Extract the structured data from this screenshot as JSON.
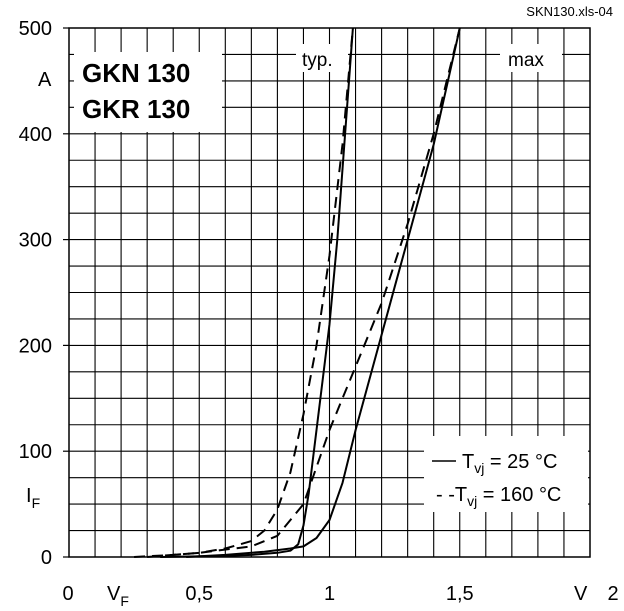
{
  "chart_data": {
    "type": "line",
    "reference": "SKN130.xls-04",
    "title_lines": [
      "GKN 130",
      "GKR 130"
    ],
    "xlabel": {
      "symbol": "V",
      "subscript": "F",
      "unit": "V"
    },
    "ylabel": {
      "symbol": "I",
      "subscript": "F",
      "unit": "A"
    },
    "xlim": [
      0,
      2
    ],
    "ylim": [
      0,
      500
    ],
    "x_tick_labels": [
      "0",
      "0,5",
      "1",
      "1,5",
      "2"
    ],
    "x_tick_values": [
      0,
      0.5,
      1,
      1.5,
      2
    ],
    "y_tick_labels": [
      "0",
      "100",
      "200",
      "300",
      "400",
      "500"
    ],
    "y_tick_values": [
      0,
      100,
      200,
      300,
      400,
      500
    ],
    "grid": true,
    "grid_x_step": 0.1,
    "grid_y_step": 25,
    "annotations": [
      "typ.",
      "max"
    ],
    "legend": {
      "placement": "bottom-right",
      "entries": [
        {
          "style": "solid",
          "prefix": "T",
          "subscript": "vj",
          "value": " =  25 °C"
        },
        {
          "style": "dashed",
          "prefix": "- -T",
          "subscript": "vj",
          "value": " = 160 °C"
        }
      ]
    },
    "series": [
      {
        "group": "typ.",
        "style": "solid",
        "points": [
          [
            0.35,
            0
          ],
          [
            0.6,
            1
          ],
          [
            0.7,
            2
          ],
          [
            0.8,
            4
          ],
          [
            0.85,
            6
          ],
          [
            0.88,
            12
          ],
          [
            0.9,
            30
          ],
          [
            0.92,
            60
          ],
          [
            0.95,
            120
          ],
          [
            0.98,
            180
          ],
          [
            1.0,
            220
          ],
          [
            1.03,
            300
          ],
          [
            1.06,
            400
          ],
          [
            1.09,
            500
          ]
        ]
      },
      {
        "group": "typ.",
        "style": "dashed",
        "points": [
          [
            0.25,
            0
          ],
          [
            0.4,
            2
          ],
          [
            0.5,
            4
          ],
          [
            0.6,
            8
          ],
          [
            0.7,
            15
          ],
          [
            0.75,
            25
          ],
          [
            0.8,
            45
          ],
          [
            0.85,
            80
          ],
          [
            0.9,
            135
          ],
          [
            0.95,
            200
          ],
          [
            1.0,
            285
          ],
          [
            1.05,
            390
          ],
          [
            1.09,
            500
          ]
        ]
      },
      {
        "group": "max",
        "style": "solid",
        "points": [
          [
            0.45,
            0
          ],
          [
            0.6,
            2
          ],
          [
            0.75,
            5
          ],
          [
            0.85,
            8
          ],
          [
            0.9,
            10
          ],
          [
            0.95,
            18
          ],
          [
            1.0,
            35
          ],
          [
            1.05,
            70
          ],
          [
            1.1,
            120
          ],
          [
            1.15,
            165
          ],
          [
            1.2,
            210
          ],
          [
            1.25,
            255
          ],
          [
            1.3,
            300
          ],
          [
            1.4,
            390
          ],
          [
            1.5,
            500
          ]
        ]
      },
      {
        "group": "max",
        "style": "dashed",
        "points": [
          [
            0.3,
            0
          ],
          [
            0.5,
            4
          ],
          [
            0.7,
            10
          ],
          [
            0.8,
            20
          ],
          [
            0.9,
            50
          ],
          [
            0.95,
            85
          ],
          [
            1.0,
            120
          ],
          [
            1.05,
            150
          ],
          [
            1.1,
            180
          ],
          [
            1.2,
            240
          ],
          [
            1.3,
            315
          ],
          [
            1.4,
            400
          ],
          [
            1.5,
            500
          ]
        ]
      }
    ]
  }
}
